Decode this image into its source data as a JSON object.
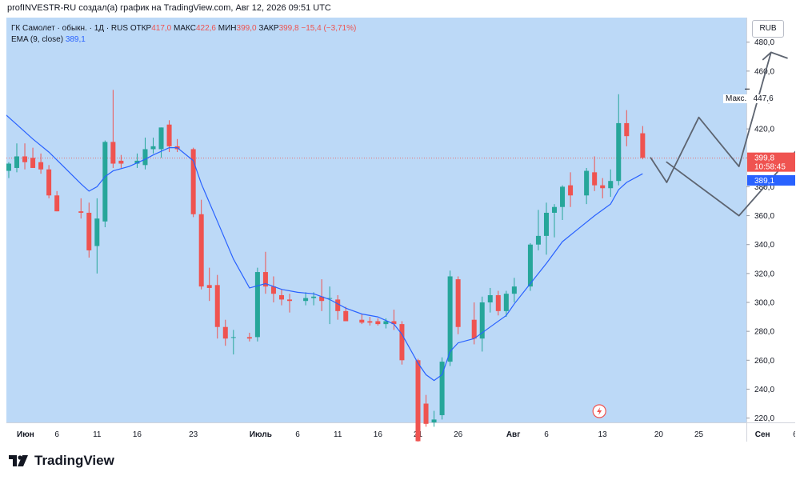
{
  "caption": "profINVESTR-RU создал(а) график на TradingView.com, Авг 12, 2026 09:51 UTC",
  "legend": {
    "symbol": "ГК Самолет · обыкн. · 1Д · RUS",
    "open_label": "ОТКР",
    "open": "417,0",
    "high_label": "МАКС",
    "high": "422,6",
    "low_label": "МИН",
    "low": "399,0",
    "close_label": "ЗАКР",
    "close": "399,8",
    "change": "−15,4 (−3,71%)",
    "ema_label": "EMA (9, close)",
    "ema_value": "389,1"
  },
  "currency": "RUB",
  "max_label": "Макс.",
  "max_value": "447,6",
  "price_tag": {
    "value": "399,8",
    "timer": "10:58:45"
  },
  "ema_tag": "389,1",
  "brand": "TradingView",
  "colors": {
    "up": "#26a69a",
    "down": "#ef5350",
    "ema": "#2962ff",
    "background": "#bcd9f7",
    "forecast": "#5d6470"
  },
  "chart_data": {
    "type": "candlestick",
    "y_axis": {
      "ylim": [
        217,
        497
      ],
      "ticks": [
        220,
        240,
        260,
        280,
        300,
        320,
        340,
        360,
        380,
        400,
        420,
        440,
        460,
        480
      ],
      "tick_labels": [
        "220,0",
        "240,0",
        "260,0",
        "280,0",
        "300,0",
        "320,0",
        "340,0",
        "360,0",
        "380,0",
        "400,0",
        "420,0",
        "440,0",
        "460,0",
        "480,0"
      ]
    },
    "x_axis": {
      "labels": [
        {
          "text": "Июн",
          "day": 0
        },
        {
          "text": "6",
          "day": 5
        },
        {
          "text": "11",
          "day": 10
        },
        {
          "text": "16",
          "day": 15
        },
        {
          "text": "23",
          "day": 22
        },
        {
          "text": "Июль",
          "day": 29
        },
        {
          "text": "6",
          "day": 35
        },
        {
          "text": "11",
          "day": 40
        },
        {
          "text": "16",
          "day": 45
        },
        {
          "text": "21",
          "day": 50
        },
        {
          "text": "26",
          "day": 55
        },
        {
          "text": "Авг",
          "day": 61
        },
        {
          "text": "6",
          "day": 66
        },
        {
          "text": "13",
          "day": 73
        },
        {
          "text": "20",
          "day": 80
        },
        {
          "text": "25",
          "day": 85
        },
        {
          "text": "Сен",
          "day": 92
        },
        {
          "text": "6",
          "day": 97
        }
      ]
    },
    "candles": [
      {
        "day": -1,
        "o": 391,
        "h": 397,
        "l": 386,
        "c": 396
      },
      {
        "day": 0,
        "o": 393,
        "h": 410,
        "l": 390,
        "c": 401
      },
      {
        "day": 1,
        "o": 401,
        "h": 410,
        "l": 392,
        "c": 397
      },
      {
        "day": 2,
        "o": 400,
        "h": 407,
        "l": 393,
        "c": 393
      },
      {
        "day": 3,
        "o": 397,
        "h": 403,
        "l": 389,
        "c": 392
      },
      {
        "day": 4,
        "o": 392,
        "h": 395,
        "l": 372,
        "c": 374
      },
      {
        "day": 5,
        "o": 374,
        "h": 377,
        "l": 363,
        "c": 363
      },
      {
        "day": 8,
        "o": 363,
        "h": 372,
        "l": 358,
        "c": 362
      },
      {
        "day": 9,
        "o": 362,
        "h": 369,
        "l": 331,
        "c": 336
      },
      {
        "day": 10,
        "o": 339,
        "h": 372,
        "l": 320,
        "c": 358
      },
      {
        "day": 11,
        "o": 356,
        "h": 412,
        "l": 352,
        "c": 411
      },
      {
        "day": 12,
        "o": 411,
        "h": 447,
        "l": 393,
        "c": 396
      },
      {
        "day": 13,
        "o": 398,
        "h": 402,
        "l": 393,
        "c": 396
      },
      {
        "day": 15,
        "o": 396,
        "h": 403,
        "l": 393,
        "c": 398
      },
      {
        "day": 16,
        "o": 395,
        "h": 414,
        "l": 392,
        "c": 406
      },
      {
        "day": 17,
        "o": 406,
        "h": 414,
        "l": 403,
        "c": 408
      },
      {
        "day": 18,
        "o": 406,
        "h": 421,
        "l": 400,
        "c": 421
      },
      {
        "day": 19,
        "o": 423,
        "h": 426,
        "l": 404,
        "c": 408
      },
      {
        "day": 20,
        "o": 408,
        "h": 413,
        "l": 404,
        "c": 406
      },
      {
        "day": 22,
        "o": 406,
        "h": 407,
        "l": 359,
        "c": 361
      },
      {
        "day": 23,
        "o": 361,
        "h": 371,
        "l": 309,
        "c": 311
      },
      {
        "day": 24,
        "o": 312,
        "h": 324,
        "l": 301,
        "c": 310
      },
      {
        "day": 25,
        "o": 312,
        "h": 319,
        "l": 275,
        "c": 283
      },
      {
        "day": 26,
        "o": 283,
        "h": 288,
        "l": 270,
        "c": 275
      },
      {
        "day": 27,
        "o": 276,
        "h": 281,
        "l": 264,
        "c": 276
      },
      {
        "day": 29,
        "o": 276,
        "h": 279,
        "l": 273,
        "c": 275
      },
      {
        "day": 30,
        "o": 276,
        "h": 324,
        "l": 273,
        "c": 321
      },
      {
        "day": 31,
        "o": 321,
        "h": 335,
        "l": 306,
        "c": 311
      },
      {
        "day": 32,
        "o": 311,
        "h": 318,
        "l": 300,
        "c": 306
      },
      {
        "day": 33,
        "o": 305,
        "h": 309,
        "l": 298,
        "c": 302
      },
      {
        "day": 34,
        "o": 302,
        "h": 306,
        "l": 293,
        "c": 301
      },
      {
        "day": 36,
        "o": 301,
        "h": 307,
        "l": 298,
        "c": 303
      },
      {
        "day": 37,
        "o": 303,
        "h": 307,
        "l": 298,
        "c": 304
      },
      {
        "day": 38,
        "o": 304,
        "h": 316,
        "l": 294,
        "c": 301
      },
      {
        "day": 39,
        "o": 303,
        "h": 311,
        "l": 285,
        "c": 303
      },
      {
        "day": 40,
        "o": 302,
        "h": 305,
        "l": 288,
        "c": 294
      },
      {
        "day": 41,
        "o": 294,
        "h": 297,
        "l": 287,
        "c": 287
      },
      {
        "day": 43,
        "o": 288,
        "h": 292,
        "l": 285,
        "c": 286
      },
      {
        "day": 44,
        "o": 287,
        "h": 290,
        "l": 284,
        "c": 286
      },
      {
        "day": 45,
        "o": 287,
        "h": 289,
        "l": 284,
        "c": 285
      },
      {
        "day": 46,
        "o": 285,
        "h": 289,
        "l": 282,
        "c": 287
      },
      {
        "day": 47,
        "o": 287,
        "h": 295,
        "l": 281,
        "c": 285
      },
      {
        "day": 48,
        "o": 285,
        "h": 287,
        "l": 257,
        "c": 260
      },
      {
        "day": 50,
        "o": 260,
        "h": 261,
        "l": 201,
        "c": 204
      },
      {
        "day": 51,
        "o": 230,
        "h": 236,
        "l": 214,
        "c": 216
      },
      {
        "day": 52,
        "o": 217,
        "h": 225,
        "l": 214,
        "c": 219
      },
      {
        "day": 53,
        "o": 222,
        "h": 262,
        "l": 219,
        "c": 259
      },
      {
        "day": 54,
        "o": 259,
        "h": 322,
        "l": 256,
        "c": 318
      },
      {
        "day": 55,
        "o": 316,
        "h": 318,
        "l": 278,
        "c": 283
      },
      {
        "day": 57,
        "o": 288,
        "h": 300,
        "l": 271,
        "c": 275
      },
      {
        "day": 58,
        "o": 275,
        "h": 304,
        "l": 266,
        "c": 300
      },
      {
        "day": 59,
        "o": 300,
        "h": 310,
        "l": 293,
        "c": 305
      },
      {
        "day": 60,
        "o": 305,
        "h": 308,
        "l": 291,
        "c": 294
      },
      {
        "day": 61,
        "o": 294,
        "h": 308,
        "l": 290,
        "c": 306
      },
      {
        "day": 62,
        "o": 306,
        "h": 317,
        "l": 300,
        "c": 311
      },
      {
        "day": 64,
        "o": 311,
        "h": 341,
        "l": 308,
        "c": 340
      },
      {
        "day": 65,
        "o": 340,
        "h": 364,
        "l": 336,
        "c": 346
      },
      {
        "day": 66,
        "o": 346,
        "h": 369,
        "l": 333,
        "c": 362
      },
      {
        "day": 67,
        "o": 362,
        "h": 368,
        "l": 345,
        "c": 366
      },
      {
        "day": 68,
        "o": 366,
        "h": 381,
        "l": 357,
        "c": 380
      },
      {
        "day": 69,
        "o": 381,
        "h": 390,
        "l": 366,
        "c": 374
      },
      {
        "day": 71,
        "o": 374,
        "h": 393,
        "l": 368,
        "c": 391
      },
      {
        "day": 72,
        "o": 390,
        "h": 401,
        "l": 377,
        "c": 381
      },
      {
        "day": 73,
        "o": 381,
        "h": 386,
        "l": 372,
        "c": 379
      },
      {
        "day": 74,
        "o": 379,
        "h": 392,
        "l": 373,
        "c": 384
      },
      {
        "day": 75,
        "o": 384,
        "h": 444,
        "l": 381,
        "c": 424
      },
      {
        "day": 76,
        "o": 424,
        "h": 433,
        "l": 408,
        "c": 415
      },
      {
        "day": 78,
        "o": 417,
        "h": 422,
        "l": 399,
        "c": 400
      }
    ],
    "ema": {
      "name": "EMA (9, close)",
      "points": [
        {
          "day": -2,
          "v": 433
        },
        {
          "day": 0,
          "v": 423
        },
        {
          "day": 2,
          "v": 413
        },
        {
          "day": 4,
          "v": 404
        },
        {
          "day": 6,
          "v": 393
        },
        {
          "day": 8,
          "v": 382
        },
        {
          "day": 9,
          "v": 377
        },
        {
          "day": 10,
          "v": 380
        },
        {
          "day": 11,
          "v": 387
        },
        {
          "day": 12,
          "v": 391
        },
        {
          "day": 14,
          "v": 394
        },
        {
          "day": 16,
          "v": 399
        },
        {
          "day": 17,
          "v": 402
        },
        {
          "day": 19,
          "v": 407
        },
        {
          "day": 20,
          "v": 407
        },
        {
          "day": 22,
          "v": 398
        },
        {
          "day": 23,
          "v": 382
        },
        {
          "day": 25,
          "v": 356
        },
        {
          "day": 27,
          "v": 330
        },
        {
          "day": 29,
          "v": 310
        },
        {
          "day": 31,
          "v": 313
        },
        {
          "day": 33,
          "v": 309
        },
        {
          "day": 35,
          "v": 307
        },
        {
          "day": 37,
          "v": 306
        },
        {
          "day": 39,
          "v": 302
        },
        {
          "day": 41,
          "v": 296
        },
        {
          "day": 43,
          "v": 292
        },
        {
          "day": 45,
          "v": 290
        },
        {
          "day": 47,
          "v": 285
        },
        {
          "day": 48,
          "v": 278
        },
        {
          "day": 50,
          "v": 258
        },
        {
          "day": 51,
          "v": 250
        },
        {
          "day": 52,
          "v": 246
        },
        {
          "day": 53,
          "v": 250
        },
        {
          "day": 54,
          "v": 266
        },
        {
          "day": 55,
          "v": 272
        },
        {
          "day": 57,
          "v": 275
        },
        {
          "day": 59,
          "v": 283
        },
        {
          "day": 61,
          "v": 291
        },
        {
          "day": 62,
          "v": 299
        },
        {
          "day": 64,
          "v": 313
        },
        {
          "day": 66,
          "v": 327
        },
        {
          "day": 68,
          "v": 342
        },
        {
          "day": 70,
          "v": 351
        },
        {
          "day": 72,
          "v": 360
        },
        {
          "day": 74,
          "v": 368
        },
        {
          "day": 75,
          "v": 378
        },
        {
          "day": 76,
          "v": 383
        },
        {
          "day": 78,
          "v": 389
        }
      ]
    },
    "last_price": 399.8,
    "ema_last": 389.1,
    "max_price": 447.6,
    "forecast_paths": [
      [
        {
          "day": 79,
          "v": 400
        },
        {
          "day": 81,
          "v": 383
        },
        {
          "day": 85,
          "v": 428
        },
        {
          "day": 90,
          "v": 394
        },
        {
          "day": 94,
          "v": 473
        },
        {
          "day": 93,
          "v": 468
        },
        {
          "day": 94,
          "v": 473
        },
        {
          "day": 96,
          "v": 469
        }
      ],
      [
        {
          "day": 81,
          "v": 397
        },
        {
          "day": 90,
          "v": 360
        },
        {
          "day": 103,
          "v": 442
        },
        {
          "day": 100,
          "v": 440
        },
        {
          "day": 103,
          "v": 442
        },
        {
          "day": 102,
          "v": 437
        }
      ]
    ]
  }
}
